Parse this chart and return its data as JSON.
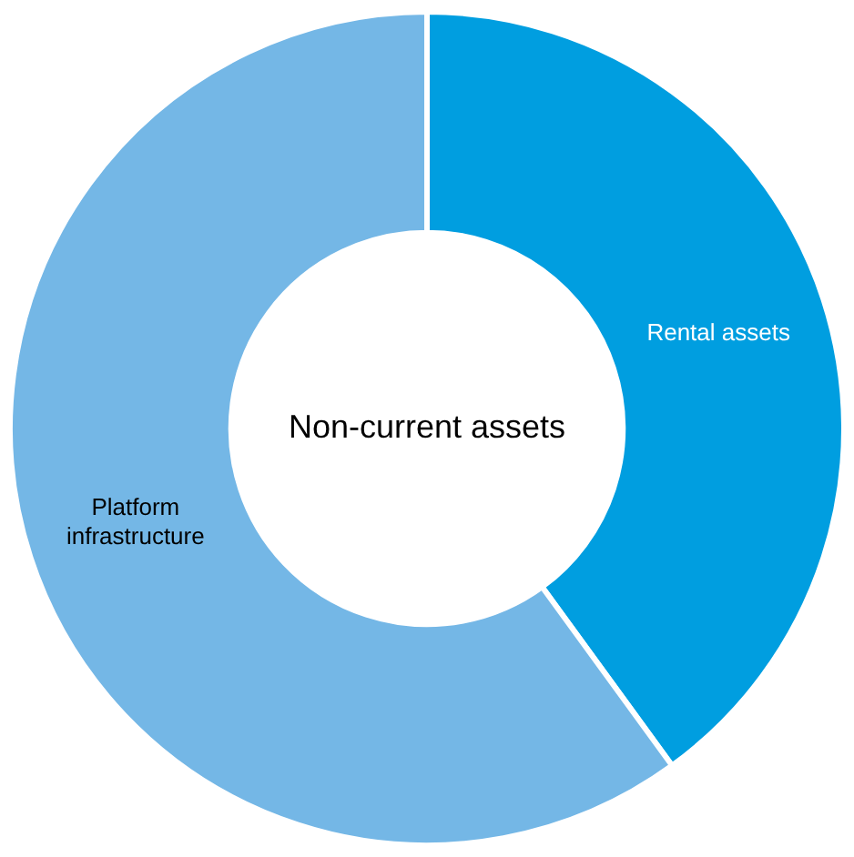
{
  "chart_data": {
    "type": "donut",
    "title": "Non-current assets",
    "categories": [
      "Rental assets",
      "Platform infrastructure"
    ],
    "values": [
      40,
      60
    ],
    "colors": [
      "#009ee0",
      "#74b7e6"
    ],
    "legend": false
  }
}
